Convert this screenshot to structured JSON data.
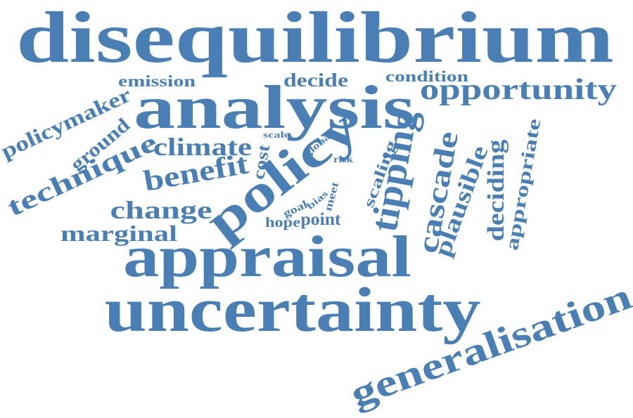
{
  "word_color": "#4a7fb5",
  "words": [
    {
      "id": "disequilibrium",
      "text": "disequilibrium"
    },
    {
      "id": "analysis",
      "text": "analysis"
    },
    {
      "id": "opportunity",
      "text": "opportunity"
    },
    {
      "id": "emission",
      "text": "emission"
    },
    {
      "id": "decide",
      "text": "decide"
    },
    {
      "id": "condition",
      "text": "condition"
    },
    {
      "id": "policymaker",
      "text": "policymaker"
    },
    {
      "id": "ground",
      "text": "ground"
    },
    {
      "id": "climate",
      "text": "climate"
    },
    {
      "id": "scale",
      "text": "scale"
    },
    {
      "id": "global",
      "text": "global"
    },
    {
      "id": "cost",
      "text": "cost"
    },
    {
      "id": "risk",
      "text": "risk"
    },
    {
      "id": "technique",
      "text": "technique"
    },
    {
      "id": "benefit",
      "text": "benefit"
    },
    {
      "id": "policy",
      "text": "policy"
    },
    {
      "id": "change",
      "text": "change"
    },
    {
      "id": "bias",
      "text": "bias"
    },
    {
      "id": "meet",
      "text": "meet"
    },
    {
      "id": "goal",
      "text": "goal"
    },
    {
      "id": "hope",
      "text": "hope"
    },
    {
      "id": "point",
      "text": "point"
    },
    {
      "id": "scaling",
      "text": "scaling"
    },
    {
      "id": "tipping",
      "text": "tipping"
    },
    {
      "id": "cascade",
      "text": "cascade"
    },
    {
      "id": "plausible",
      "text": "plausible"
    },
    {
      "id": "deciding",
      "text": "deciding"
    },
    {
      "id": "appropriate",
      "text": "appropriate"
    },
    {
      "id": "marginal",
      "text": "marginal"
    },
    {
      "id": "appraisal",
      "text": "appraisal"
    },
    {
      "id": "uncertainty",
      "text": "uncertainty"
    },
    {
      "id": "generalisation",
      "text": "generalisation"
    }
  ]
}
